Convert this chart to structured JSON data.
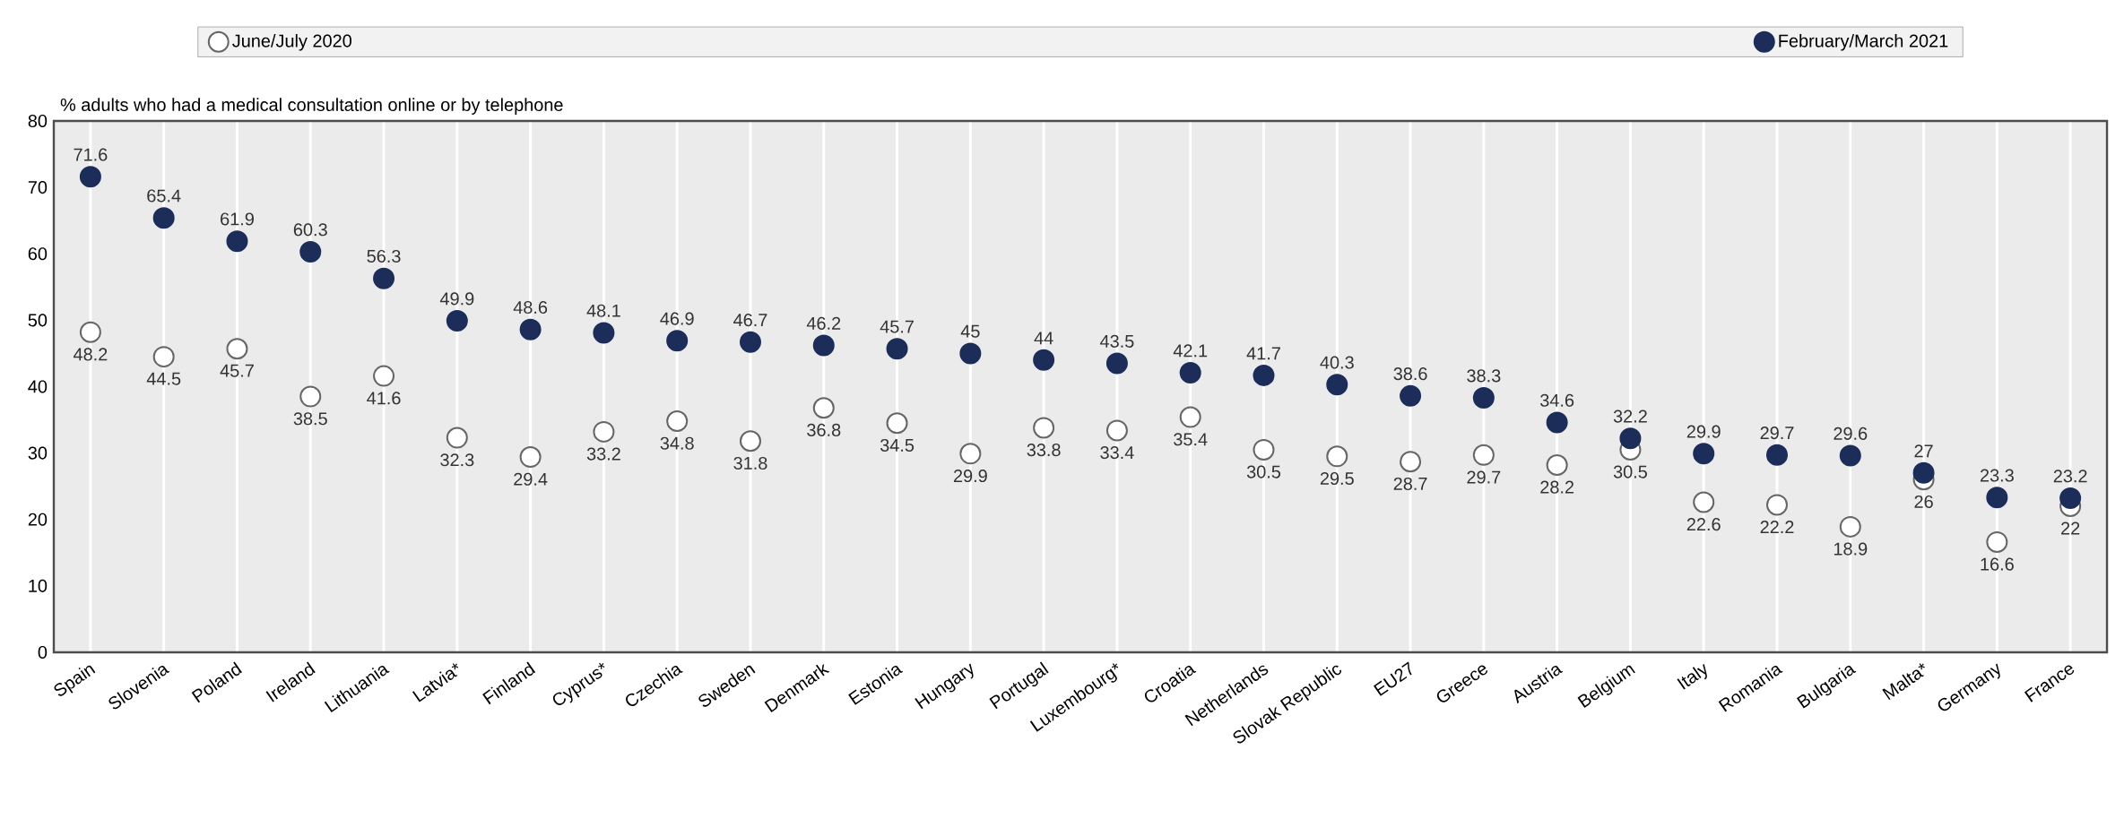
{
  "chart_data": {
    "type": "scatter",
    "ylabel": "% adults who had a medical consultation online or by telephone",
    "categories": [
      "Spain",
      "Slovenia",
      "Poland",
      "Ireland",
      "Lithuania",
      "Latvia*",
      "Finland",
      "Cyprus*",
      "Czechia",
      "Sweden",
      "Denmark",
      "Estonia",
      "Hungary",
      "Portugal",
      "Luxembourg*",
      "Croatia",
      "Netherlands",
      "Slovak Republic",
      "EU27",
      "Greece",
      "Austria",
      "Belgium",
      "Italy",
      "Romania",
      "Bulgaria",
      "Malta*",
      "Germany",
      "France"
    ],
    "series": [
      {
        "name": "June/July 2020",
        "color": "#ffffff",
        "values": [
          48.2,
          44.5,
          45.7,
          38.5,
          41.6,
          32.3,
          29.4,
          33.2,
          34.8,
          31.8,
          36.8,
          34.5,
          29.9,
          33.8,
          33.4,
          35.4,
          30.5,
          29.5,
          28.7,
          29.7,
          28.2,
          30.5,
          22.6,
          22.2,
          18.9,
          26,
          16.6,
          22
        ]
      },
      {
        "name": "February/March 2021",
        "color": "#1c2d5a",
        "values": [
          71.6,
          65.4,
          61.9,
          60.3,
          56.3,
          49.9,
          48.6,
          48.1,
          46.9,
          46.7,
          46.2,
          45.7,
          45,
          44,
          43.5,
          42.1,
          41.7,
          40.3,
          38.6,
          38.3,
          34.6,
          32.2,
          29.9,
          29.7,
          29.6,
          27,
          23.3,
          23.2
        ]
      }
    ],
    "ylim": [
      0,
      80
    ],
    "yticks": [
      0,
      10,
      20,
      30,
      40,
      50,
      60,
      70,
      80
    ],
    "grid": "x",
    "legend": "top",
    "marker": "circle",
    "data_labels": true
  }
}
